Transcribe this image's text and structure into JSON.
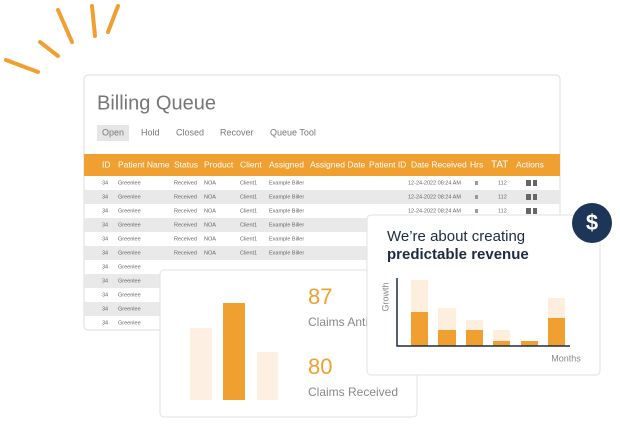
{
  "queue": {
    "title": "Billing Queue",
    "tabs": [
      "Open",
      "Hold",
      "Closed",
      "Recover",
      "Queue Tool"
    ],
    "columns": [
      "ID",
      "Patient Name",
      "Status",
      "Product",
      "Client",
      "Assigned",
      "Assigned Date",
      "Patient ID",
      "Date Received",
      "Hrs",
      "TAT",
      "Actions"
    ],
    "rows": [
      {
        "id": "34",
        "patient": "Greenlee",
        "status": "Received",
        "product": "NOA",
        "client": "Client1",
        "assigned": "Example Biller",
        "date": "12-24-2022 08:24 AM",
        "tat": "112"
      },
      {
        "id": "34",
        "patient": "Greenlee",
        "status": "Received",
        "product": "NOA",
        "client": "Client1",
        "assigned": "Example Biller",
        "date": "12-24-2022 08:24 AM",
        "tat": "112"
      },
      {
        "id": "34",
        "patient": "Greenlee",
        "status": "Received",
        "product": "NOA",
        "client": "Client1",
        "assigned": "Example Biller",
        "date": "12-24-2022 08:24 AM",
        "tat": "112"
      },
      {
        "id": "34",
        "patient": "Greenlee",
        "status": "Received",
        "product": "NOA",
        "client": "Client1",
        "assigned": "Example Biller"
      },
      {
        "id": "34",
        "patient": "Greenlee",
        "status": "Received",
        "product": "NOA",
        "client": "Client1",
        "assigned": "Example Biller"
      },
      {
        "id": "34",
        "patient": "Greenlee",
        "status": "Received",
        "product": "NOA",
        "client": "Client1",
        "assigned": "Example Biller"
      },
      {
        "id": "34",
        "patient": "Greenlee"
      },
      {
        "id": "34",
        "patient": "Greenlee"
      },
      {
        "id": "34",
        "patient": "Greenlee"
      },
      {
        "id": "34",
        "patient": "Greenlee"
      },
      {
        "id": "34",
        "patient": "Greenlee"
      }
    ]
  },
  "claims": [
    {
      "number": "87",
      "label": "Claims Anti"
    },
    {
      "number": "80",
      "label": "Claims Received"
    }
  ],
  "revenue": {
    "line1": "We’re about creating",
    "line2": "predictable revenue",
    "y_label": "Growth",
    "x_label": "Months",
    "icon": "$"
  }
}
